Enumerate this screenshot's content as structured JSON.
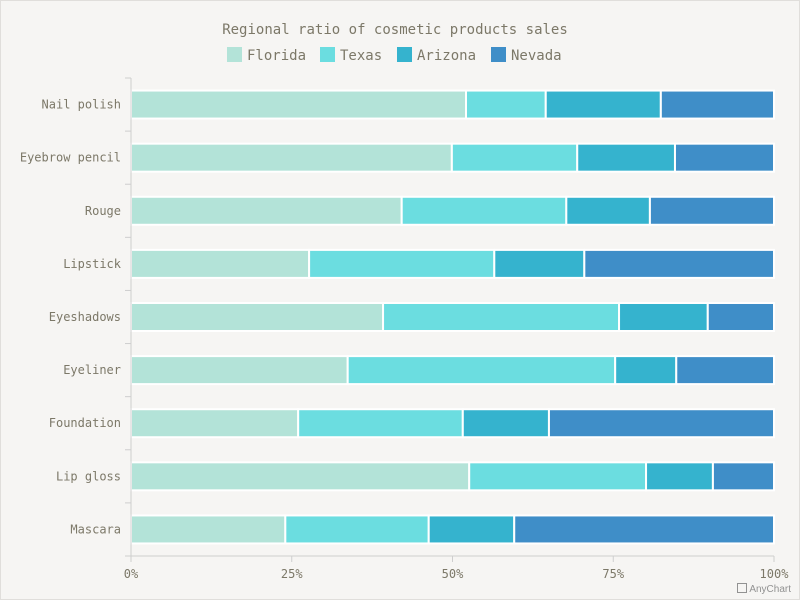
{
  "chart_data": {
    "type": "bar",
    "orientation": "horizontal",
    "stacking": "percent",
    "title": "Regional ratio of cosmetic products sales",
    "legend_position": "top",
    "categories": [
      "Nail polish",
      "Eyebrow pencil",
      "Rouge",
      "Lipstick",
      "Eyeshadows",
      "Eyeliner",
      "Foundation",
      "Lip gloss",
      "Mascara"
    ],
    "series": [
      {
        "name": "Florida",
        "color": "#b3e3d8",
        "values": [
          52.1,
          49.9,
          42.1,
          27.7,
          39.2,
          33.7,
          26.0,
          52.6,
          24.0
        ]
      },
      {
        "name": "Texas",
        "color": "#6bdde0",
        "values": [
          12.4,
          19.5,
          25.6,
          28.8,
          36.7,
          41.6,
          25.6,
          27.5,
          22.3
        ]
      },
      {
        "name": "Arizona",
        "color": "#35b3ce",
        "values": [
          17.9,
          15.2,
          13.0,
          14.0,
          13.8,
          9.5,
          13.4,
          10.4,
          13.3
        ]
      },
      {
        "name": "Nevada",
        "color": "#3f8ec8",
        "values": [
          17.6,
          15.4,
          19.3,
          29.5,
          10.3,
          15.2,
          35.0,
          9.5,
          40.4
        ]
      }
    ],
    "xlim": [
      0,
      100
    ],
    "x_ticks": [
      "0%",
      "25%",
      "50%",
      "75%",
      "100%"
    ],
    "grid": false
  },
  "credit": "AnyChart"
}
